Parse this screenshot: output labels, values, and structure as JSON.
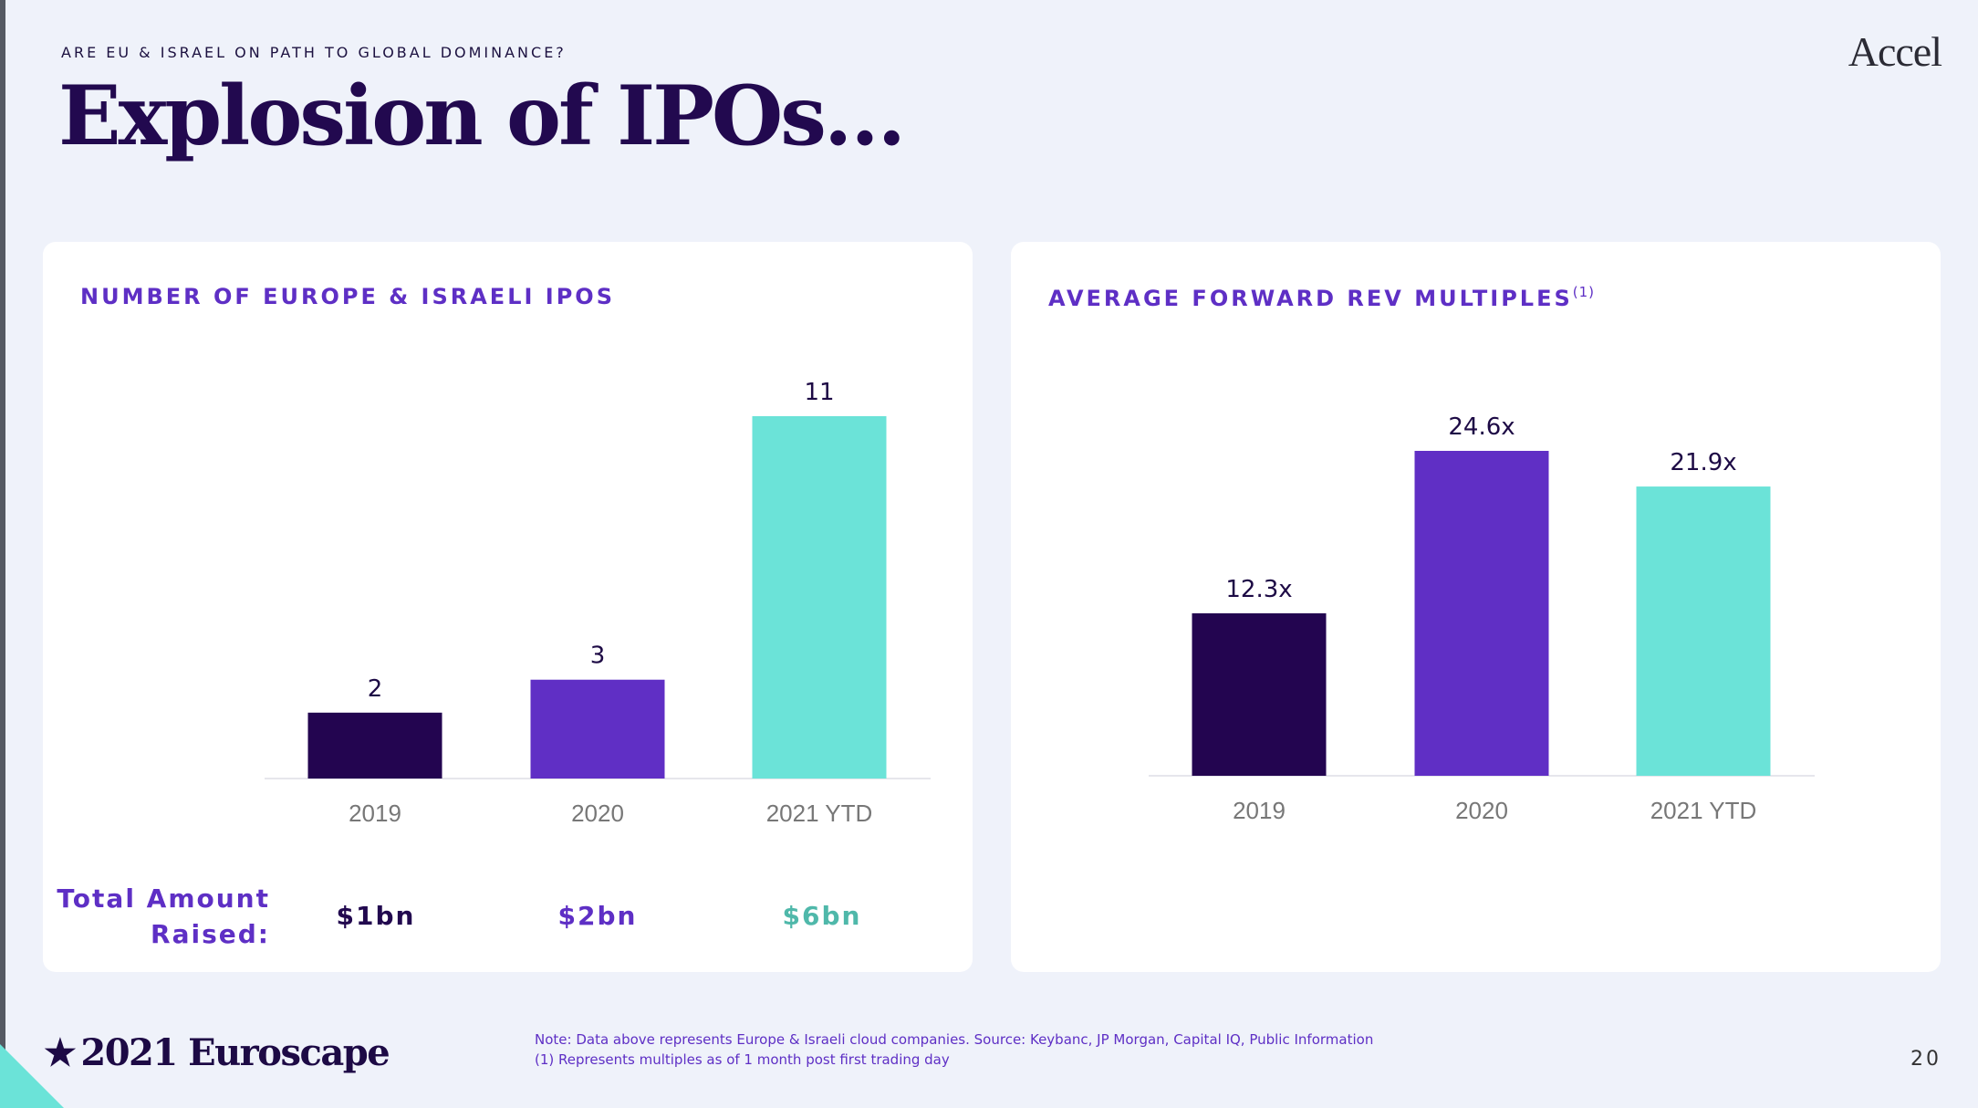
{
  "header": {
    "kicker": "ARE EU & ISRAEL ON PATH TO GLOBAL DOMINANCE?",
    "title": "Explosion of IPOs…",
    "logo": "Accel"
  },
  "left_card": {
    "title": "NUMBER OF EUROPE & ISRAELI IPOS",
    "raised_label_line1": "Total Amount",
    "raised_label_line2": "Raised:",
    "raised_values": [
      "$1bn",
      "$2bn",
      "$6bn"
    ],
    "raised_colors": [
      "#22094f",
      "#5e2fc5",
      "#4fb8aa"
    ]
  },
  "right_card": {
    "title": "AVERAGE FORWARD REV MULTIPLES",
    "title_sup": "(1)"
  },
  "colors": {
    "bar_2019": "#230550",
    "bar_2020": "#602fc5",
    "bar_2021": "#6be3d8",
    "axis": "#e6e6ec",
    "label_grey": "#777777"
  },
  "chart_data": [
    {
      "type": "bar",
      "title": "NUMBER OF EUROPE & ISRAELI IPOS",
      "categories": [
        "2019",
        "2020",
        "2021 YTD"
      ],
      "values": [
        2,
        3,
        11
      ],
      "data_labels": [
        "2",
        "3",
        "11"
      ],
      "ylim": [
        0,
        11
      ]
    },
    {
      "type": "bar",
      "title": "AVERAGE FORWARD REV MULTIPLES",
      "categories": [
        "2019",
        "2020",
        "2021 YTD"
      ],
      "values": [
        12.3,
        24.6,
        21.9
      ],
      "data_labels": [
        "12.3x",
        "24.6x",
        "21.9x"
      ],
      "ylim": [
        0,
        24.6
      ]
    }
  ],
  "footer": {
    "brand_star": "★",
    "brand": "2021 Euroscape",
    "note_line1": "Note: Data above represents Europe & Israeli cloud companies. Source: Keybanc, JP Morgan, Capital IQ, Public Information",
    "note_line2": "(1) Represents multiples as of 1 month post first trading day",
    "page_number": "20"
  }
}
